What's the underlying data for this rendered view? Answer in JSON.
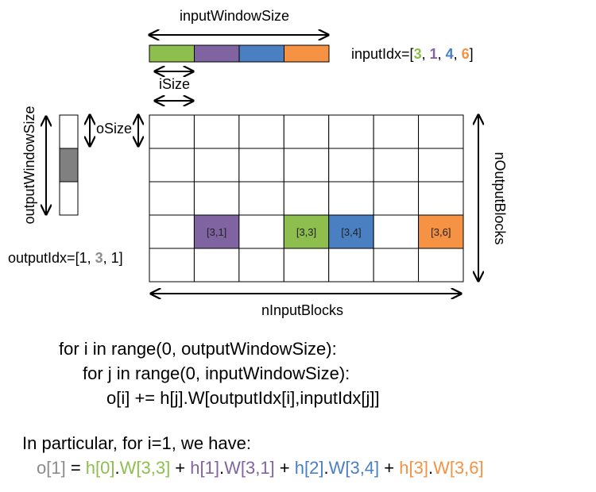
{
  "labels": {
    "input_window_size": "inputWindowSize",
    "i_size": "iSize",
    "o_size": "oSize",
    "output_window_size": "outputWindowSize",
    "n_output_blocks": "nOutputBlocks",
    "n_input_blocks": "nInputBlocks"
  },
  "input_idx": {
    "prefix": "inputIdx=[",
    "values": [
      "3",
      "1",
      "4",
      "6"
    ],
    "sep": ", ",
    "suffix": "]"
  },
  "output_idx": {
    "prefix": "outputIdx=[",
    "values": [
      "1",
      "3",
      "1"
    ],
    "sep": ", ",
    "suffix": "]"
  },
  "grid": {
    "rows": 5,
    "cols": 7,
    "highlighted_cells": [
      {
        "label": "[3,1]",
        "row": 3,
        "col": 1,
        "color": "#8064A2"
      },
      {
        "label": "[3,3]",
        "row": 3,
        "col": 3,
        "color": "#8DBE4E"
      },
      {
        "label": "[3,4]",
        "row": 3,
        "col": 4,
        "color": "#4A7FC1"
      },
      {
        "label": "[3,6]",
        "row": 3,
        "col": 6,
        "color": "#F59243"
      }
    ]
  },
  "input_window_colors": [
    "#8DBE4E",
    "#8064A2",
    "#4A7FC1",
    "#F59243"
  ],
  "output_window": {
    "cells": 3,
    "highlighted_index": 1,
    "highlight_color": "#808080"
  },
  "code": {
    "line1": "for i in range(0, outputWindowSize):",
    "line2": "for j in range(0, inputWindowSize):",
    "line3": "o[i] += h[j].W[outputIdx[i],inputIdx[j]]"
  },
  "particular": {
    "heading": "In particular, for i=1, we have:",
    "o": "o[1]",
    "eq": " = ",
    "terms": [
      {
        "h": "h[0]",
        "w": "W[3,3]",
        "color": "green"
      },
      {
        "h": "h[1]",
        "w": "W[3,1]",
        "color": "purple"
      },
      {
        "h": "h[2]",
        "w": "W[3,4]",
        "color": "blue"
      },
      {
        "h": "h[3]",
        "w": "W[3,6]",
        "color": "orange"
      }
    ],
    "dot": ".",
    "plus": " + "
  }
}
